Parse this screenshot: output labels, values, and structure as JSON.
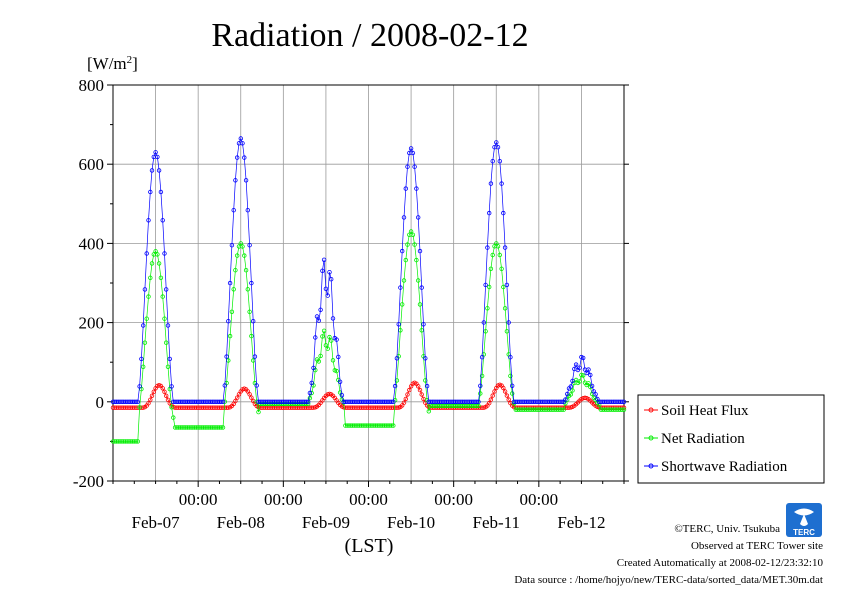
{
  "chart_data": {
    "type": "line",
    "title": "Radiation / 2008-02-12",
    "ylabel_unit": "[W/m",
    "ylabel_sup": "2",
    "ylabel_close": "]",
    "xlabel": "(LST)",
    "ylim": [
      -200,
      800
    ],
    "yticks": [
      "800",
      "600",
      "400",
      "200",
      "0",
      "-200"
    ],
    "ytick_values": [
      800,
      600,
      400,
      200,
      0,
      -200
    ],
    "xlim_hours": [
      0,
      144
    ],
    "x_midnight_label": "00:00",
    "x_day_labels": [
      "Feb-07",
      "Feb-08",
      "Feb-09",
      "Feb-10",
      "Feb-11",
      "Feb-12"
    ],
    "grid": true,
    "legend_position": "right",
    "series": [
      {
        "name": "Soil Heat Flux",
        "color": "#ff0000",
        "day_peaks": [
          42,
          33,
          20,
          48,
          43,
          10
        ],
        "night_value": -15
      },
      {
        "name": "Net Radiation",
        "color": "#00ee00",
        "day_peaks": [
          380,
          400,
          160,
          430,
          400,
          60
        ],
        "night_values": [
          -100,
          -65,
          -5,
          -60,
          -10,
          -20
        ]
      },
      {
        "name": "Shortwave Radiation",
        "color": "#0000ff",
        "day_peaks": [
          630,
          665,
          320,
          640,
          655,
          100
        ],
        "night_value": 0
      }
    ]
  },
  "footer": {
    "copyright": "©TERC, Univ. Tsukuba",
    "observed": "Observed at TERC Tower site",
    "created": "Created Automatically at 2008-02-12/23:32:10",
    "source": "Data source : /home/hojyo/new/TERC-data/sorted_data/MET.30m.dat"
  },
  "logo": {
    "text": "TERC",
    "color": "#1e6fd0"
  }
}
